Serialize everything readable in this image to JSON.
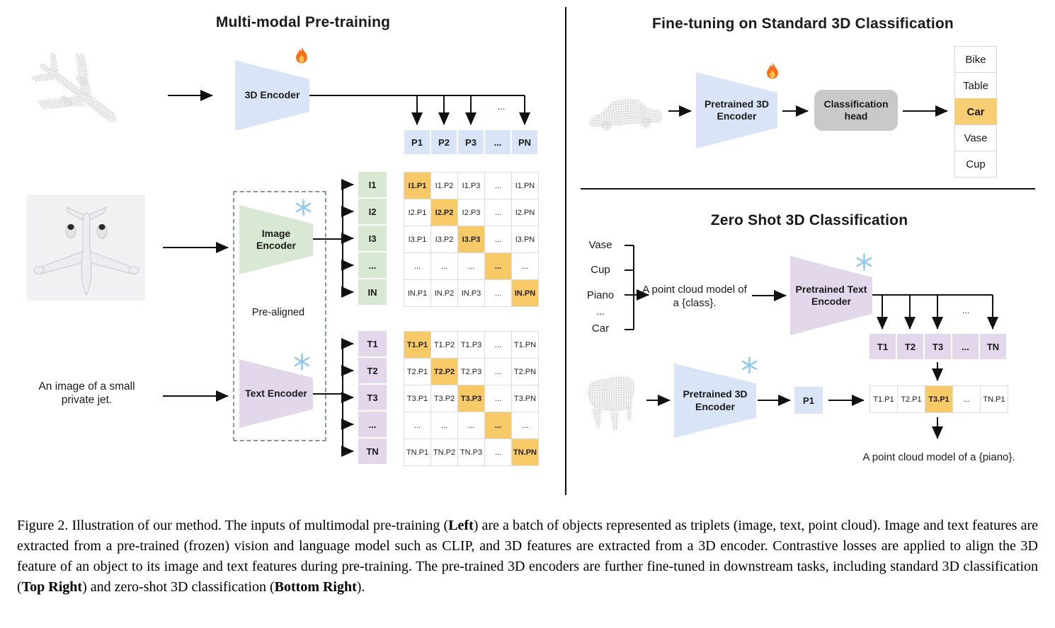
{
  "panels": {
    "pretraining": {
      "title": "Multi-modal Pre-training",
      "encoder3d_label": "3D Encoder",
      "image_encoder_label": "Image Encoder",
      "text_encoder_label": "Text Encoder",
      "prealigned_label": "Pre-aligned",
      "image_caption": "An image of a small private jet.",
      "p_ellipsis": "...",
      "p_row": [
        "P1",
        "P2",
        "P3",
        "...",
        "PN"
      ],
      "image_rows": [
        "I1",
        "I2",
        "I3",
        "...",
        "IN"
      ],
      "text_rows": [
        "T1",
        "T2",
        "T3",
        "...",
        "TN"
      ],
      "image_matrix": [
        [
          "I1.P1",
          "I1.P2",
          "I1.P3",
          "...",
          "I1.PN"
        ],
        [
          "I2.P1",
          "I2.P2",
          "I2.P3",
          "...",
          "I2.PN"
        ],
        [
          "I3.P1",
          "I3.P2",
          "I3.P3",
          "...",
          "I3.PN"
        ],
        [
          "...",
          "...",
          "...",
          "...",
          "..."
        ],
        [
          "IN.P1",
          "IN.P2",
          "IN.P3",
          "...",
          "IN.PN"
        ]
      ],
      "text_matrix": [
        [
          "T1.P1",
          "T1.P2",
          "T1.P3",
          "...",
          "T1.PN"
        ],
        [
          "T2.P1",
          "T2.P2",
          "T2.P3",
          "...",
          "T2.PN"
        ],
        [
          "T3.P1",
          "T3.P2",
          "T3.P3",
          "...",
          "T3.PN"
        ],
        [
          "...",
          "...",
          "...",
          "...",
          "..."
        ],
        [
          "TN.P1",
          "TN.P2",
          "TN.P3",
          "...",
          "TN.PN"
        ]
      ]
    },
    "finetune": {
      "title": "Fine-tuning on Standard 3D Classification",
      "encoder_label": "Pretrained 3D Encoder",
      "head_label": "Classification head",
      "classes": [
        "Bike",
        "Table",
        "Car",
        "Vase",
        "Cup"
      ],
      "predicted_class": "Car"
    },
    "zeroshot": {
      "title": "Zero Shot 3D Classification",
      "classes": [
        "Vase",
        "Cup",
        "Piano",
        "...",
        "Car"
      ],
      "prompt_line1": "A point cloud model of",
      "prompt_line2": "a {class}.",
      "text_encoder_label": "Pretrained Text Encoder",
      "encoder3d_label": "Pretrained 3D Encoder",
      "p_cell": "P1",
      "t_ellipsis": "...",
      "t_row": [
        "T1",
        "T2",
        "T3",
        "...",
        "TN"
      ],
      "match_row": [
        "T1.P1",
        "T2.P1",
        "T3.P1",
        "...",
        "TN.P1"
      ],
      "result_text": "A point cloud model of a {piano}."
    }
  },
  "icons": {
    "trainable": "fire-icon",
    "frozen": "snowflake-icon"
  },
  "colors": {
    "point_feature_blue": "#d9e4f7",
    "image_feature_green": "#d9e8d3",
    "text_feature_purple": "#e3d7ec",
    "highlight_orange": "#f8c967",
    "head_gray": "#c9c9c9"
  },
  "caption": {
    "segments": [
      {
        "text": "Figure 2. Illustration of our method. The inputs of multimodal pre-training ("
      },
      {
        "text": "Left",
        "bold": true
      },
      {
        "text": ") are a batch of objects represented as triplets (image, text, point cloud). Image and text features are extracted from a pre-trained (frozen) vision and language model such as CLIP, and 3D features are extracted from a 3D encoder. Contrastive losses are applied to align the 3D feature of an object to its image and text features during pre-training. The pre-trained 3D encoders are further fine-tuned in downstream tasks, including standard 3D classification ("
      },
      {
        "text": "Top Right",
        "bold": true
      },
      {
        "text": ") and zero-shot 3D classification ("
      },
      {
        "text": "Bottom Right",
        "bold": true
      },
      {
        "text": ")."
      }
    ]
  }
}
